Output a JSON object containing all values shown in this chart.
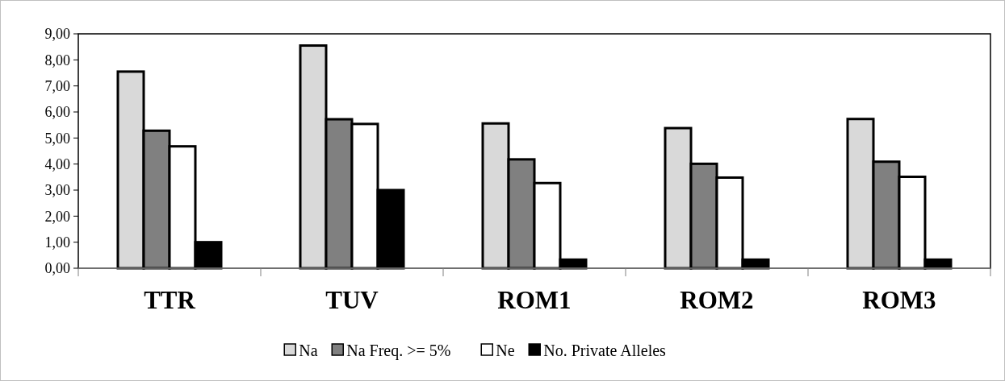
{
  "chart_data": {
    "type": "bar",
    "categories": [
      "TTR",
      "TUV",
      "ROM1",
      "ROM2",
      "ROM3"
    ],
    "series": [
      {
        "name": "Na",
        "color": "#d9d9d9",
        "values": [
          7.55,
          8.55,
          5.56,
          5.38,
          5.73
        ]
      },
      {
        "name": "Na Freq. >= 5%",
        "color": "#808080",
        "values": [
          5.28,
          5.72,
          4.18,
          4.01,
          4.09
        ]
      },
      {
        "name": "Ne",
        "color": "#ffffff",
        "values": [
          4.68,
          5.54,
          3.27,
          3.48,
          3.51
        ]
      },
      {
        "name": "No. Private Alleles",
        "color": "#000000",
        "values": [
          1.0,
          3.0,
          0.33,
          0.33,
          0.33
        ]
      }
    ],
    "ylim": [
      0,
      9
    ],
    "yticks": [
      {
        "value": 0,
        "label": "0,00"
      },
      {
        "value": 1,
        "label": "1,00"
      },
      {
        "value": 2,
        "label": "2,00"
      },
      {
        "value": 3,
        "label": "3,00"
      },
      {
        "value": 4,
        "label": "4,00"
      },
      {
        "value": 5,
        "label": "5,00"
      },
      {
        "value": 6,
        "label": "6,00"
      },
      {
        "value": 7,
        "label": "7,00"
      },
      {
        "value": 8,
        "label": "8,00"
      },
      {
        "value": 9,
        "label": "9,00"
      }
    ],
    "grid": false,
    "legend": "bottom"
  }
}
